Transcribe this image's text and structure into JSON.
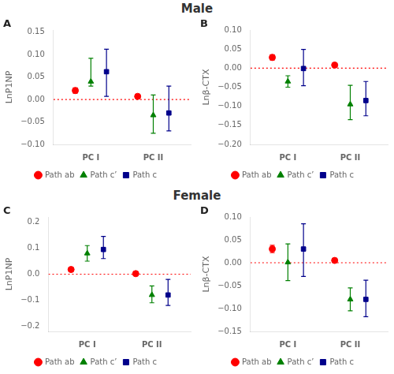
{
  "chart_data": [
    {
      "type": "scatter",
      "title": "Male",
      "annotations": [
        "A"
      ],
      "y_label": "LnP1NP",
      "categories": [
        "PC I",
        "PC II"
      ],
      "series": [
        {
          "name": "Path ab",
          "color": "#FF0000",
          "marker": "circle",
          "values": [
            0.02,
            0.007
          ],
          "yerr_lo": [
            0.006,
            0.003
          ],
          "yerr_hi": [
            0.006,
            0.003
          ]
        },
        {
          "name": "Path c’",
          "color": "#008000",
          "marker": "triangle",
          "values": [
            0.04,
            -0.035
          ],
          "yerr_lo": [
            0.01,
            0.04
          ],
          "yerr_hi": [
            0.052,
            0.045
          ]
        },
        {
          "name": "Path c",
          "color": "#00008B",
          "marker": "square",
          "values": [
            0.062,
            -0.03
          ],
          "yerr_lo": [
            0.055,
            0.04
          ],
          "yerr_hi": [
            0.05,
            0.06
          ]
        }
      ],
      "reference_lines": [
        {
          "y": 0,
          "color": "#FF0000",
          "line_style": "dotted"
        }
      ],
      "ylim": [
        -0.1,
        0.155
      ],
      "yticks": [
        {
          "value": -0.1,
          "label": "−0.10"
        },
        {
          "value": -0.05,
          "label": "−0.05"
        },
        {
          "value": 0.0,
          "label": "0.00"
        },
        {
          "value": 0.05,
          "label": "0.05"
        },
        {
          "value": 0.1,
          "label": "0.10"
        },
        0.15
      ],
      "grid": false,
      "legend": "bottom"
    },
    {
      "type": "scatter",
      "annotations": [
        "B"
      ],
      "y_label": "Lnβ-CTX",
      "categories": [
        "PC I",
        "PC II"
      ],
      "series": [
        {
          "name": "Path ab",
          "color": "#FF0000",
          "marker": "circle",
          "values": [
            0.028,
            0.008
          ],
          "yerr_lo": [
            0.007,
            0.003
          ],
          "yerr_hi": [
            0.007,
            0.003
          ]
        },
        {
          "name": "Path c’",
          "color": "#008000",
          "marker": "triangle",
          "values": [
            -0.035,
            -0.095
          ],
          "yerr_lo": [
            0.015,
            0.04
          ],
          "yerr_hi": [
            0.015,
            0.05
          ]
        },
        {
          "name": "Path c",
          "color": "#00008B",
          "marker": "square",
          "values": [
            -0.001,
            -0.085
          ],
          "yerr_lo": [
            0.045,
            0.04
          ],
          "yerr_hi": [
            0.05,
            0.05
          ]
        }
      ],
      "reference_lines": [
        {
          "y": 0,
          "color": "#FF0000",
          "line_style": "dotted"
        }
      ],
      "ylim": [
        -0.2,
        0.1
      ],
      "yticks": [
        {
          "value": -0.2,
          "label": "−0.20"
        },
        {
          "value": -0.15,
          "label": "−0.15"
        },
        {
          "value": -0.1,
          "label": "−0.10"
        },
        {
          "value": -0.05,
          "label": "−0.05"
        },
        {
          "value": 0.0,
          "label": "0.00"
        },
        0.05,
        {
          "value": 0.1,
          "label": "0.10"
        }
      ],
      "grid": false,
      "legend": "bottom"
    },
    {
      "type": "scatter",
      "title": "Female",
      "annotations": [
        "C"
      ],
      "y_label": "LnP1NP",
      "categories": [
        "PC I",
        "PC II"
      ],
      "series": [
        {
          "name": "Path ab",
          "color": "#FF0000",
          "marker": "circle",
          "values": [
            0.018,
            0.002
          ],
          "yerr_lo": [
            0.005,
            0.002
          ],
          "yerr_hi": [
            0.005,
            0.002
          ]
        },
        {
          "name": "Path c’",
          "color": "#008000",
          "marker": "triangle",
          "values": [
            0.08,
            -0.08
          ],
          "yerr_lo": [
            0.03,
            0.03
          ],
          "yerr_hi": [
            0.03,
            0.035
          ]
        },
        {
          "name": "Path c",
          "color": "#00008B",
          "marker": "square",
          "values": [
            0.095,
            -0.08
          ],
          "yerr_lo": [
            0.035,
            0.04
          ],
          "yerr_hi": [
            0.05,
            0.06
          ]
        }
      ],
      "reference_lines": [
        {
          "y": 0,
          "color": "#FF0000",
          "line_style": "dotted"
        }
      ],
      "ylim": [
        -0.22,
        0.22
      ],
      "yticks": [
        {
          "value": -0.2,
          "label": "−0.2"
        },
        {
          "value": -0.1,
          "label": "−0.1"
        },
        {
          "value": 0.0,
          "label": "0.0"
        },
        0.1,
        0.2
      ],
      "grid": false,
      "legend": "bottom"
    },
    {
      "type": "scatter",
      "annotations": [
        "D"
      ],
      "y_label": "Lnβ-CTX",
      "categories": [
        "PC I",
        "PC II"
      ],
      "series": [
        {
          "name": "Path ab",
          "color": "#FF0000",
          "marker": "circle",
          "values": [
            0.03,
            0.005
          ],
          "yerr_lo": [
            0.008,
            0.003
          ],
          "yerr_hi": [
            0.008,
            0.003
          ]
        },
        {
          "name": "Path c’",
          "color": "#008000",
          "marker": "triangle",
          "values": [
            0.001,
            -0.08
          ],
          "yerr_lo": [
            0.04,
            0.025
          ],
          "yerr_hi": [
            0.04,
            0.025
          ]
        },
        {
          "name": "Path c",
          "color": "#00008B",
          "marker": "square",
          "values": [
            0.03,
            -0.08
          ],
          "yerr_lo": [
            0.06,
            0.038
          ],
          "yerr_hi": [
            0.055,
            0.042
          ]
        }
      ],
      "reference_lines": [
        {
          "y": 0,
          "color": "#FF0000",
          "line_style": "dotted"
        }
      ],
      "ylim": [
        -0.15,
        0.1
      ],
      "yticks": [
        {
          "value": -0.15,
          "label": "−0.15"
        },
        {
          "value": -0.1,
          "label": "−0.10"
        },
        {
          "value": -0.05,
          "label": "−0.05"
        },
        {
          "value": 0.0,
          "label": "0.00"
        },
        0.05,
        {
          "value": 0.1,
          "label": "0.10"
        }
      ],
      "grid": false,
      "legend": "bottom"
    }
  ]
}
